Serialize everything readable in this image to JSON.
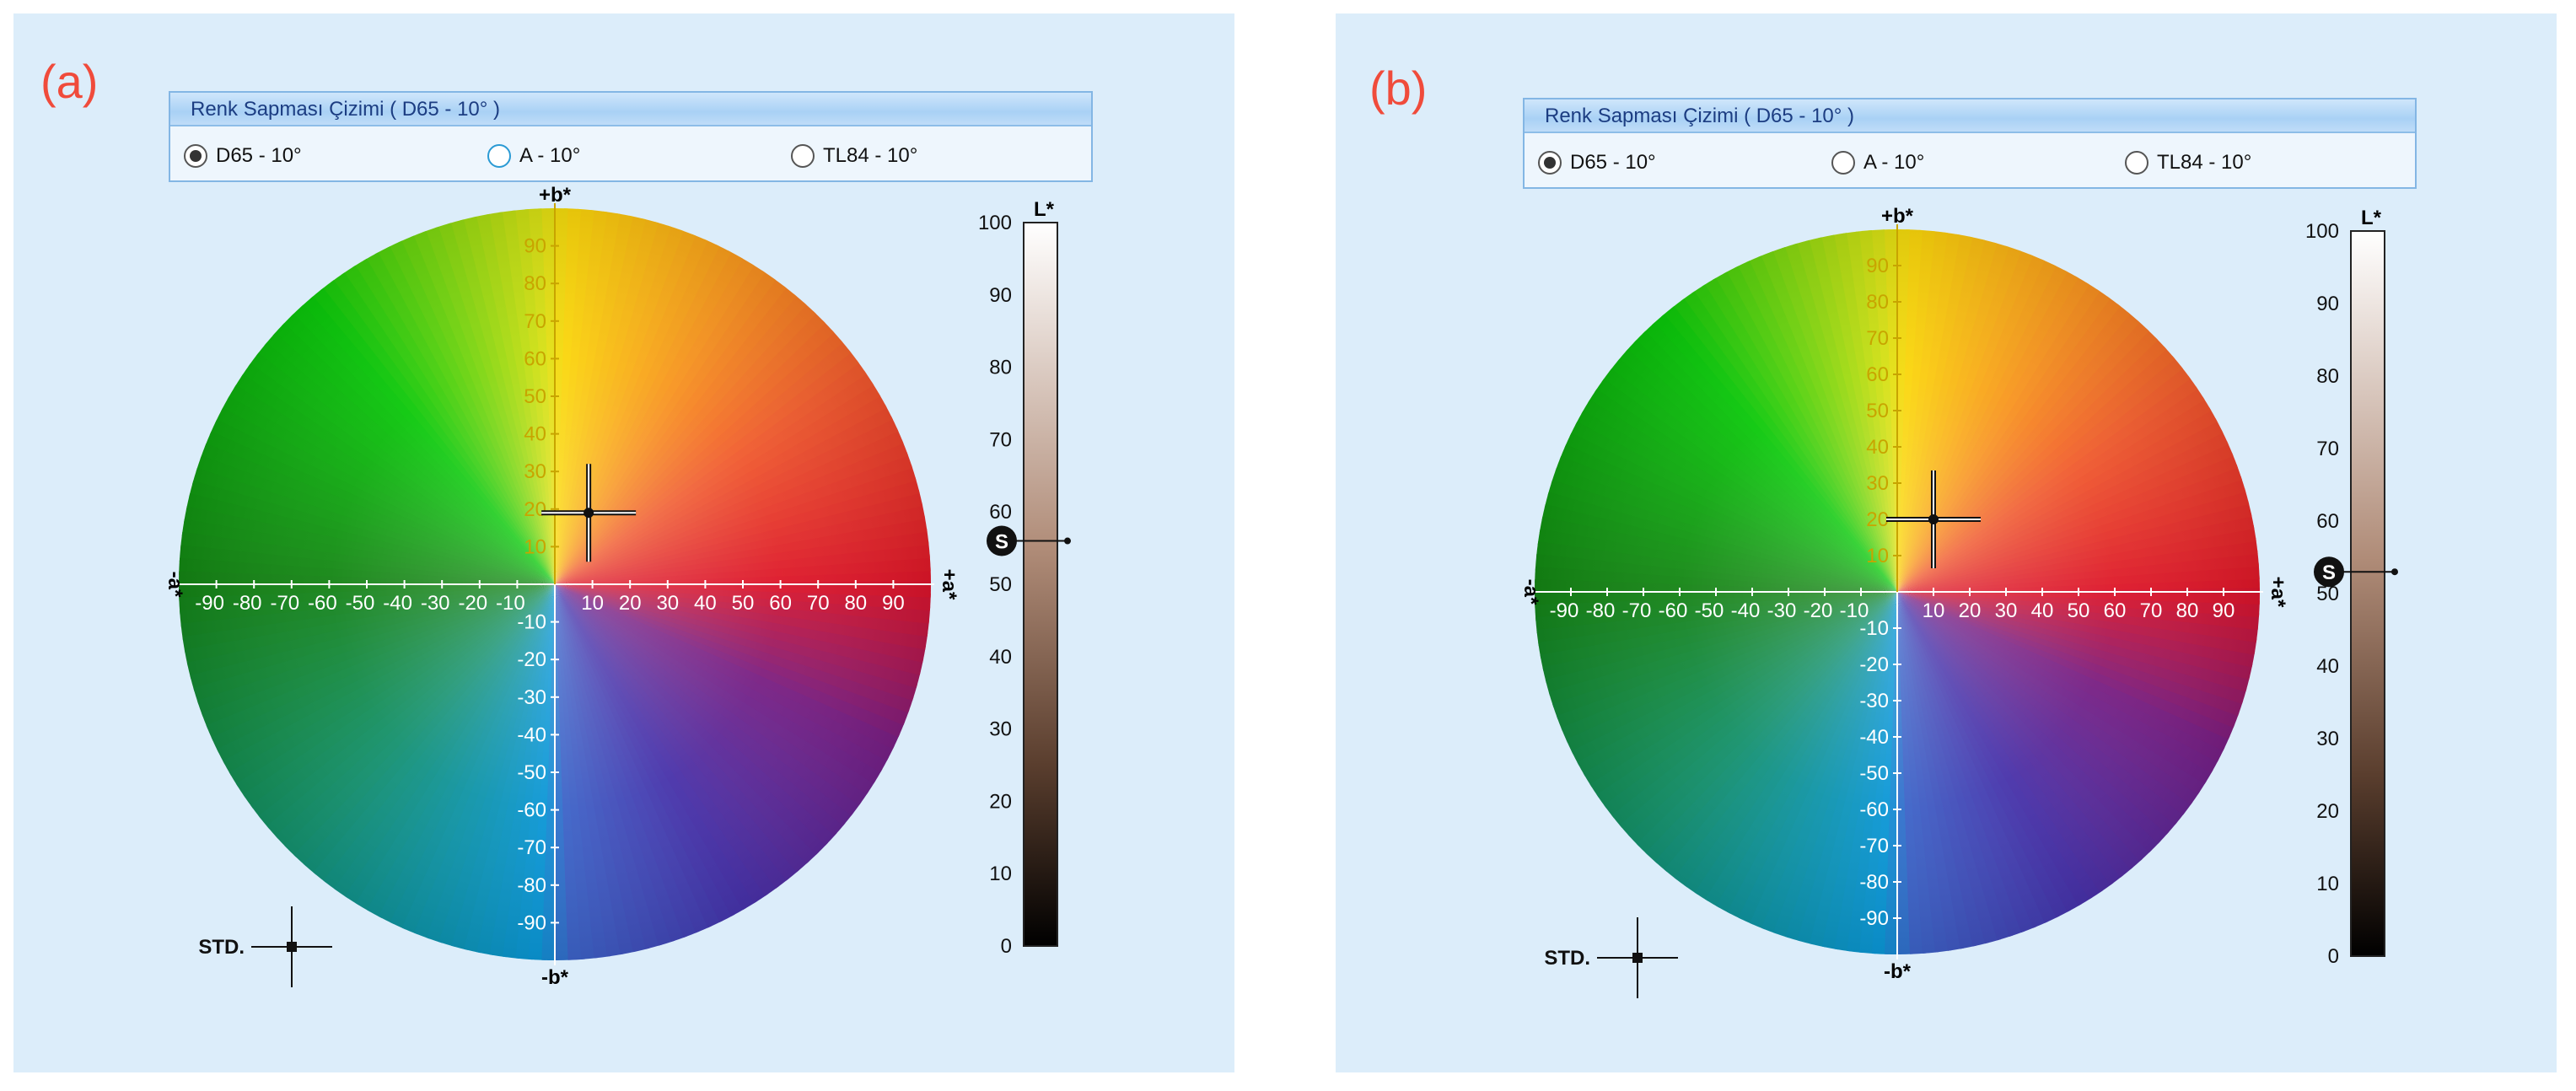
{
  "panels": [
    {
      "id": "a",
      "letter": "(a)",
      "group_title": "Renk Sapması Çizimi ( D65 - 10° )",
      "options": [
        {
          "label": "D65 - 10°",
          "checked": true,
          "hover": false
        },
        {
          "label": "A - 10°",
          "checked": false,
          "hover": true
        },
        {
          "label": "TL84 - 10°",
          "checked": false,
          "hover": false
        }
      ],
      "sample": {
        "a": 9,
        "b": 19,
        "L": 56
      },
      "std_label": "STD.",
      "s_label": "S"
    },
    {
      "id": "b",
      "letter": "(b)",
      "group_title": "Renk Sapması Çizimi ( D65 - 10° )",
      "options": [
        {
          "label": "D65 - 10°",
          "checked": true,
          "hover": false
        },
        {
          "label": "A - 10°",
          "checked": false,
          "hover": false
        },
        {
          "label": "TL84 - 10°",
          "checked": false,
          "hover": false
        }
      ],
      "sample": {
        "a": 10,
        "b": 20,
        "L": 53
      },
      "std_label": "STD.",
      "s_label": "S"
    }
  ],
  "axis": {
    "b_plus": "+b*",
    "b_minus": "-b*",
    "a_plus": "+a*",
    "a_minus": "-a*",
    "L": "L*",
    "range": [
      -100,
      100
    ],
    "ticks": [
      -90,
      -80,
      -70,
      -60,
      -50,
      -40,
      -30,
      -20,
      -10,
      10,
      20,
      30,
      40,
      50,
      60,
      70,
      80,
      90
    ],
    "L_ticks": [
      0,
      10,
      20,
      30,
      40,
      50,
      60,
      70,
      80,
      90,
      100
    ]
  },
  "colors": {
    "panel_bg": "#dcedfa",
    "label_red": "#f04b3b",
    "axis_yellow": "#c8a400"
  }
}
